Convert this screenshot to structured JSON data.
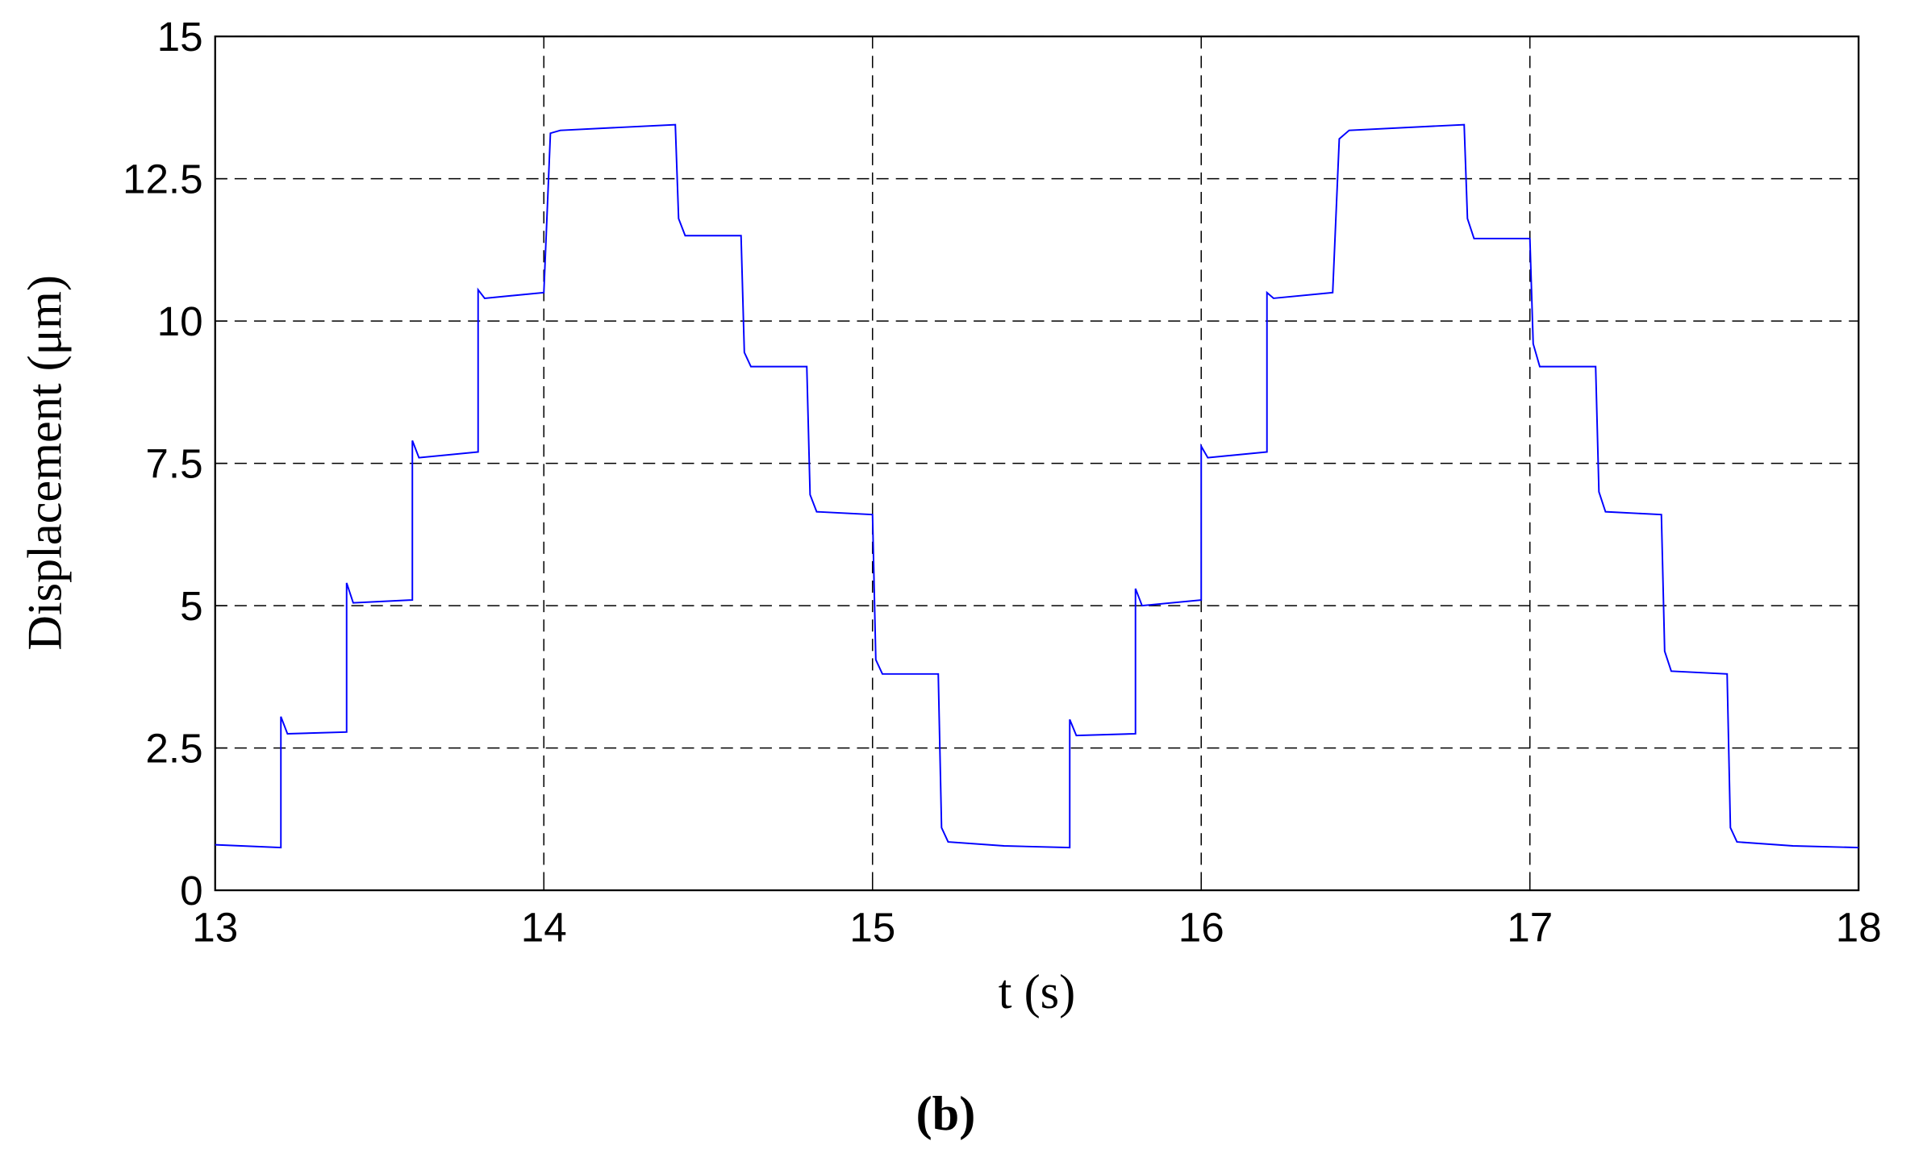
{
  "chart_data": {
    "type": "line",
    "xlabel": "t (s)",
    "ylabel": "Displacement (μm)",
    "caption": "(b)",
    "xlim": [
      13,
      18
    ],
    "ylim": [
      0,
      15
    ],
    "xticks": [
      13,
      14,
      15,
      16,
      17,
      18
    ],
    "yticks": [
      0,
      2.5,
      5,
      7.5,
      10,
      12.5,
      15
    ],
    "grid": true,
    "x": [
      13,
      13.2,
      13.2,
      13.22,
      13.4,
      13.4,
      13.42,
      13.6,
      13.6,
      13.62,
      13.8,
      13.8,
      13.82,
      14.0,
      14.02,
      14.05,
      14.4,
      14.41,
      14.43,
      14.6,
      14.61,
      14.63,
      14.8,
      14.81,
      14.83,
      15.0,
      15.01,
      15.03,
      15.2,
      15.21,
      15.23,
      15.4,
      15.6,
      15.6,
      15.62,
      15.8,
      15.8,
      15.82,
      16.0,
      16.0,
      16.02,
      16.2,
      16.2,
      16.22,
      16.4,
      16.42,
      16.45,
      16.8,
      16.81,
      16.83,
      17.0,
      17.01,
      17.03,
      17.2,
      17.21,
      17.23,
      17.4,
      17.41,
      17.43,
      17.6,
      17.61,
      17.63,
      17.8,
      18
    ],
    "series": [
      {
        "name": "displacement",
        "color": "#0000ff",
        "values": [
          0.8,
          0.75,
          3.05,
          2.75,
          2.78,
          5.4,
          5.05,
          5.1,
          7.9,
          7.6,
          7.7,
          10.55,
          10.4,
          10.5,
          13.3,
          13.35,
          13.45,
          11.8,
          11.5,
          11.5,
          9.45,
          9.2,
          9.2,
          6.95,
          6.65,
          6.6,
          4.05,
          3.8,
          3.8,
          1.1,
          0.85,
          0.78,
          0.75,
          3.0,
          2.72,
          2.75,
          5.3,
          5.0,
          5.1,
          7.8,
          7.6,
          7.7,
          10.5,
          10.4,
          10.5,
          13.2,
          13.35,
          13.45,
          11.8,
          11.45,
          11.45,
          9.6,
          9.2,
          9.2,
          7.0,
          6.65,
          6.6,
          4.2,
          3.85,
          3.8,
          1.1,
          0.85,
          0.78,
          0.75
        ]
      }
    ]
  }
}
